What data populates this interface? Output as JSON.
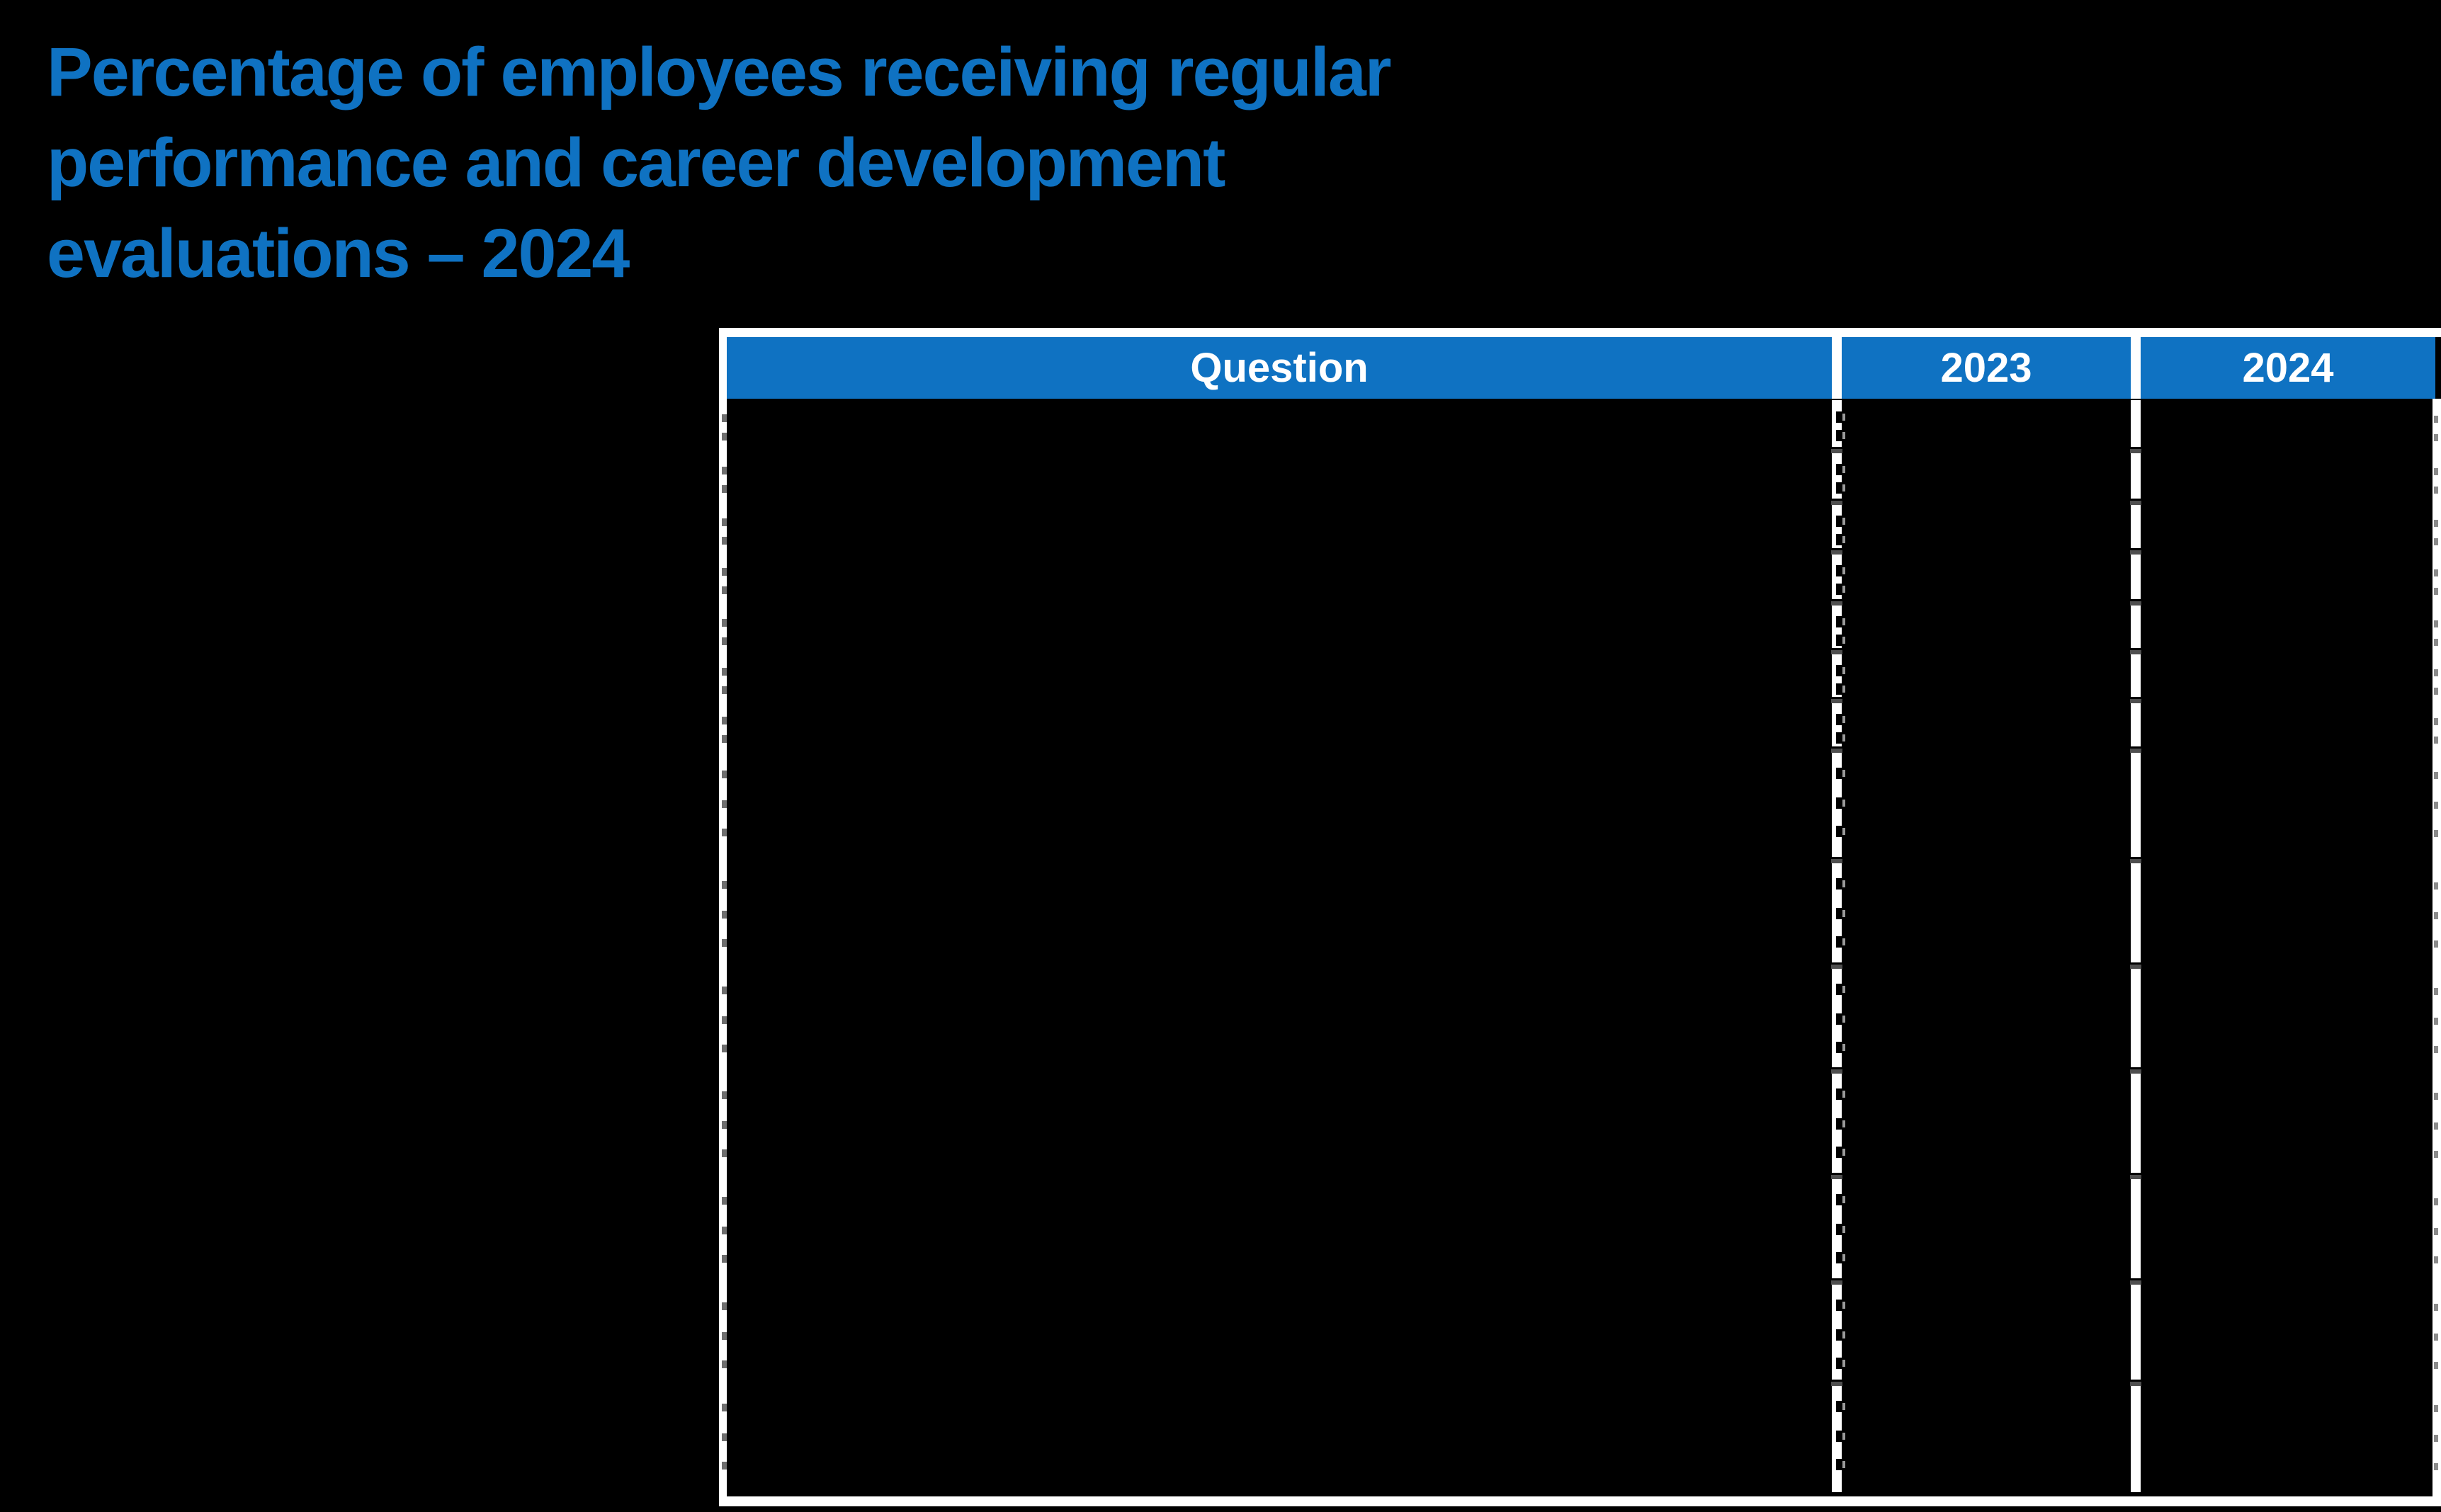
{
  "title": {
    "lines": [
      "Percentage of employees receiving regular",
      "performance and career development",
      "evaluations – 2024"
    ]
  },
  "table": {
    "columns": [
      "Question",
      "2023",
      "2024"
    ],
    "rows": [
      {
        "question": "",
        "y2023": "",
        "y2024": ""
      },
      {
        "question": "",
        "y2023": "",
        "y2024": ""
      },
      {
        "question": "",
        "y2023": "",
        "y2024": ""
      },
      {
        "question": "",
        "y2023": "",
        "y2024": ""
      },
      {
        "question": "",
        "y2023": "",
        "y2024": ""
      },
      {
        "question": "",
        "y2023": "",
        "y2024": ""
      },
      {
        "question": "",
        "y2023": "",
        "y2024": ""
      },
      {
        "question": "",
        "y2023": "",
        "y2024": ""
      },
      {
        "question": "",
        "y2023": "",
        "y2024": ""
      },
      {
        "question": "",
        "y2023": "",
        "y2024": ""
      },
      {
        "question": "",
        "y2023": "",
        "y2024": ""
      },
      {
        "question": "",
        "y2023": "",
        "y2024": ""
      },
      {
        "question": "",
        "y2023": "",
        "y2024": ""
      },
      {
        "question": "",
        "y2023": "",
        "y2024": ""
      }
    ]
  },
  "chart_data": {
    "type": "table",
    "title": "Percentage of employees receiving regular performance and career development evaluations – 2024",
    "columns": [
      "Question",
      "2023",
      "2024"
    ],
    "rows_visible": 14,
    "rows": [
      {
        "question": "",
        "y2023": "",
        "y2024": ""
      },
      {
        "question": "",
        "y2023": "",
        "y2024": ""
      },
      {
        "question": "",
        "y2023": "",
        "y2024": ""
      },
      {
        "question": "",
        "y2023": "",
        "y2024": ""
      },
      {
        "question": "",
        "y2023": "",
        "y2024": ""
      },
      {
        "question": "",
        "y2023": "",
        "y2024": ""
      },
      {
        "question": "",
        "y2023": "",
        "y2024": ""
      },
      {
        "question": "",
        "y2023": "",
        "y2024": ""
      },
      {
        "question": "",
        "y2023": "",
        "y2024": ""
      },
      {
        "question": "",
        "y2023": "",
        "y2024": ""
      },
      {
        "question": "",
        "y2023": "",
        "y2024": ""
      },
      {
        "question": "",
        "y2023": "",
        "y2024": ""
      },
      {
        "question": "",
        "y2023": "",
        "y2024": ""
      },
      {
        "question": "",
        "y2023": "",
        "y2024": ""
      }
    ]
  },
  "colors": {
    "accent_blue": "#0F72C2",
    "header_text": "#FFFFFF",
    "table_border": "#FFFFFF",
    "background": "#000000"
  }
}
